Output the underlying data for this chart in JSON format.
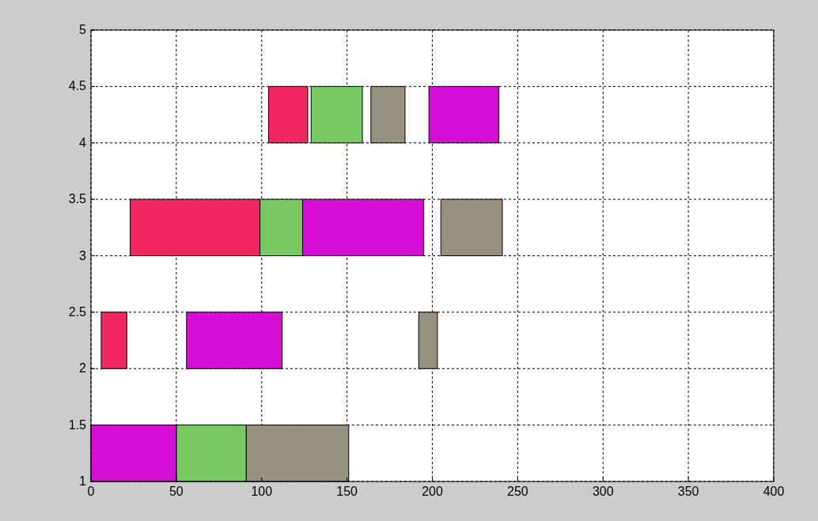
{
  "chart_data": {
    "type": "bar",
    "orientation": "horizontal",
    "xlim": [
      0,
      400
    ],
    "xticks": [
      0,
      50,
      100,
      150,
      200,
      250,
      300,
      350,
      400
    ],
    "ylim": [
      1,
      5
    ],
    "yticks": [
      1,
      1.5,
      2,
      2.5,
      3,
      3.5,
      4,
      4.5,
      5
    ],
    "grid": true,
    "series": [
      {
        "color": "#f0285f",
        "x": [
          2.25,
          3.25,
          4.25
        ],
        "base": [
          6,
          23,
          104
        ],
        "values": [
          15,
          76,
          23
        ]
      },
      {
        "color": "#78c864",
        "x": [
          1.25,
          3.25,
          4.25
        ],
        "base": [
          50,
          99,
          129
        ],
        "values": [
          41,
          25,
          30
        ]
      },
      {
        "color": "#d60fd4",
        "x": [
          1.25,
          2.25,
          3.25,
          4.25
        ],
        "base": [
          0,
          56,
          124,
          198
        ],
        "values": [
          50,
          56,
          71,
          41
        ]
      },
      {
        "color": "#959080",
        "x": [
          1.25,
          2.25,
          3.25,
          4.25
        ],
        "base": [
          91,
          192,
          205,
          164
        ],
        "values": [
          60,
          11,
          36,
          20
        ]
      }
    ]
  }
}
